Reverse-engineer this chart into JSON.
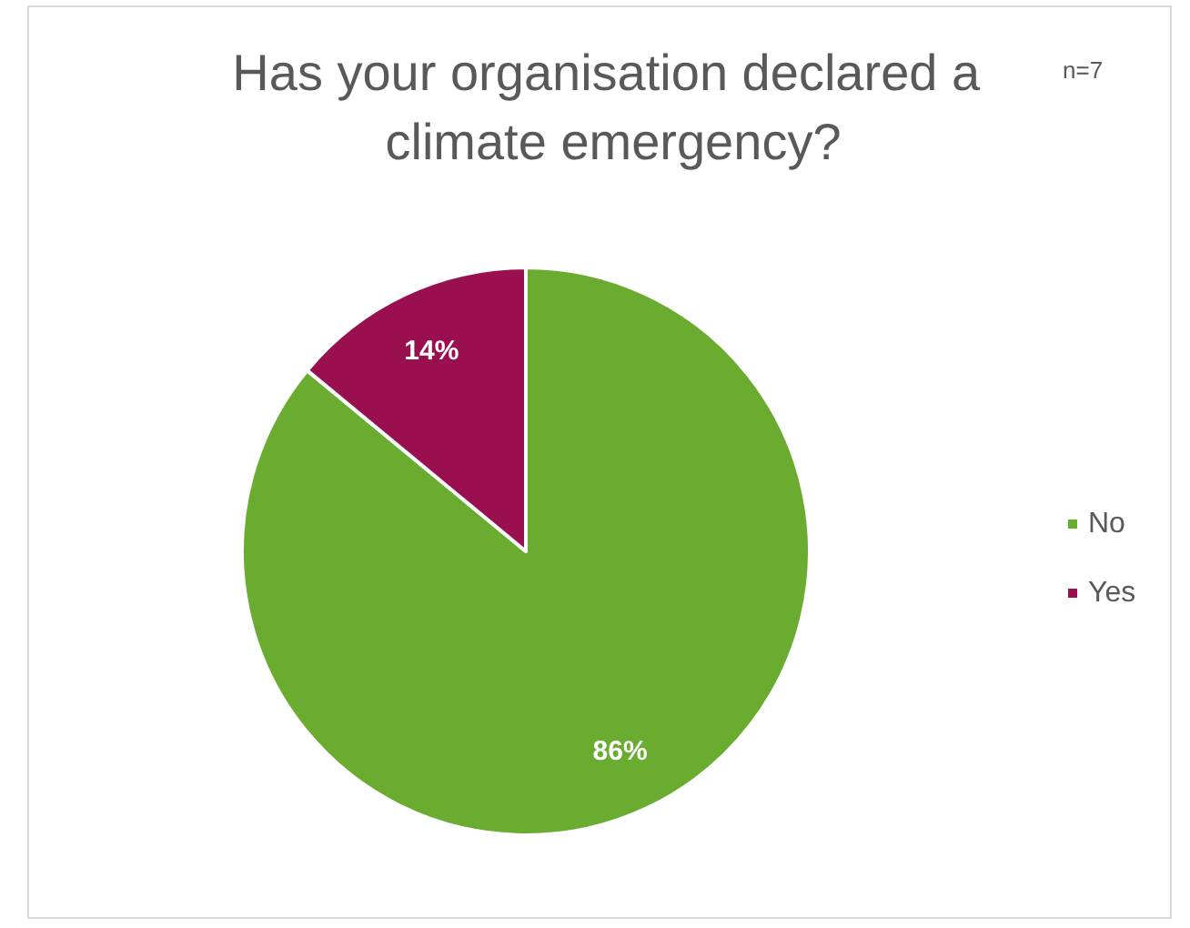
{
  "chart_data": {
    "type": "pie",
    "title": "Has your organisation declared a climate emergency?",
    "annotations": [
      "n=7"
    ],
    "categories": [
      "No",
      "Yes"
    ],
    "values": [
      86,
      14
    ],
    "colors": [
      "#6aac2f",
      "#990f4f"
    ],
    "value_labels": [
      "86%",
      "14%"
    ],
    "legend": "right"
  }
}
